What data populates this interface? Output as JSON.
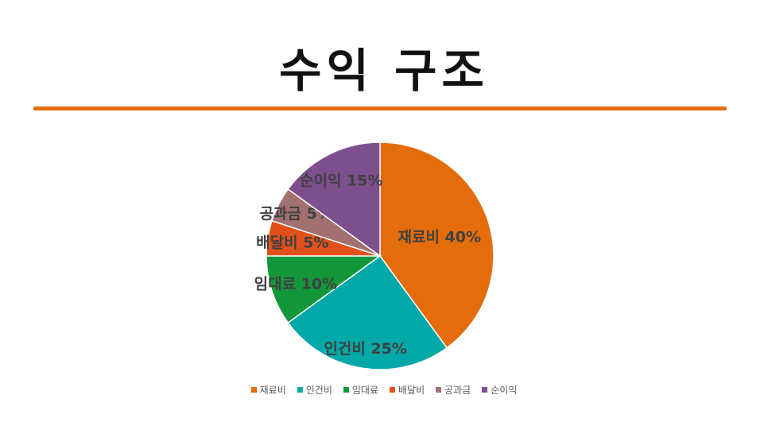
{
  "title": "수익 구조",
  "colors": {
    "accent_rule": "#e36c0a"
  },
  "chart_data": {
    "type": "pie",
    "title": "",
    "legend_position": "bottom",
    "slices": [
      {
        "label": "재료비",
        "value": 40,
        "display": "재료비 40%",
        "color": "#e46c0a"
      },
      {
        "label": "인건비",
        "value": 25,
        "display": "인건비 25%",
        "color": "#00a8a8"
      },
      {
        "label": "임대료",
        "value": 10,
        "display": "임대료 10%",
        "color": "#13973b"
      },
      {
        "label": "배달비",
        "value": 5,
        "display": "배달비 5%",
        "color": "#e1501b"
      },
      {
        "label": "공과금",
        "value": 5,
        "display": "공과금 5%",
        "color": "#a2706f"
      },
      {
        "label": "순이익",
        "value": 15,
        "display": "순이익 15%",
        "color": "#7e4f8e"
      }
    ]
  }
}
